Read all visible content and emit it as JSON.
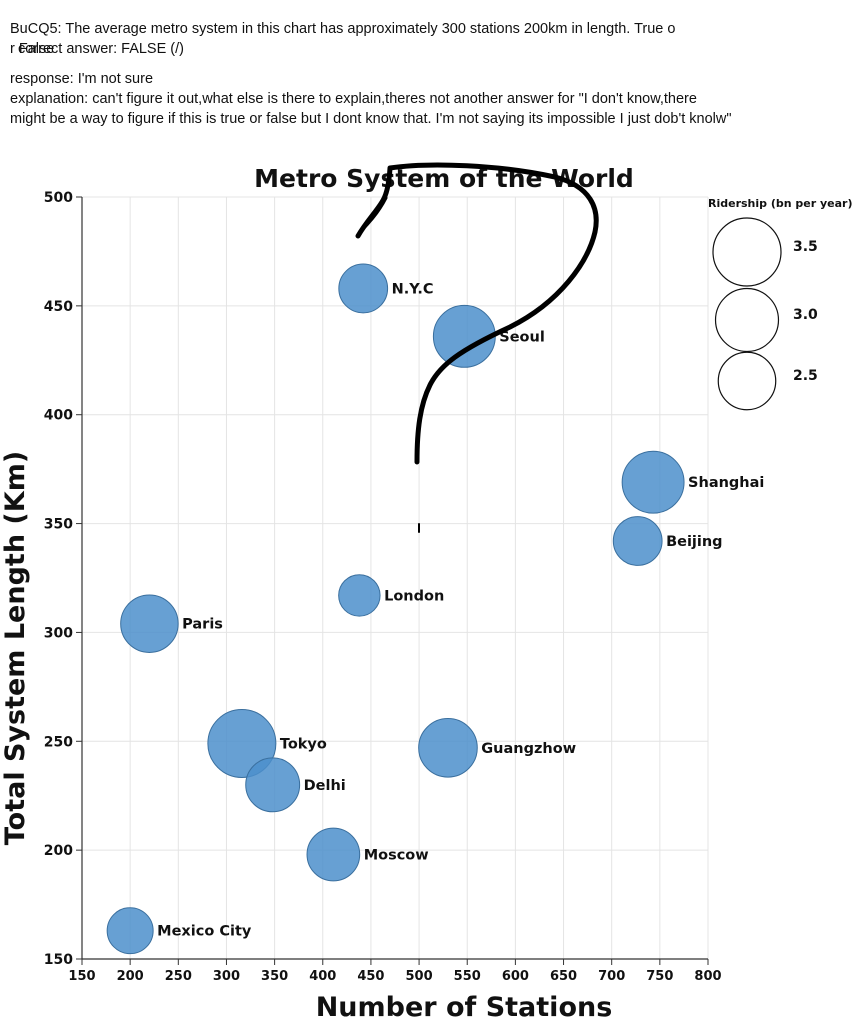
{
  "annotation": {
    "question": "BuCQ5: The average metro system in this chart has approximately 300 stations 200km in length. True o",
    "question_wrap": "r False",
    "correct_answer": "correct answer: FALSE (/)",
    "response": "response: I'm not sure",
    "explanation_line1": "explanation: can't figure it out,what else is there to explain,theres not another answer for \"I don't know,there",
    "explanation_line2": "might be a way to figure if this is true or false but I dont know that. I'm not saying its impossible I just dob't knolw\""
  },
  "colors": {
    "bubble_fill": "#4c8fcb",
    "bubble_stroke": "#3a6f9e",
    "grid": "#e4e4e4",
    "axis": "#333333",
    "scribble": "#000000"
  },
  "chart_data": {
    "type": "scatter",
    "title": "Metro System of the World",
    "xlabel": "Number of Stations",
    "ylabel": "Total System Length (Km)",
    "xlim": [
      150,
      800
    ],
    "ylim": [
      150,
      500
    ],
    "xticks": [
      150,
      200,
      250,
      300,
      350,
      400,
      450,
      500,
      550,
      600,
      650,
      700,
      750,
      800
    ],
    "yticks": [
      150,
      200,
      250,
      300,
      350,
      400,
      450,
      500
    ],
    "grid": true,
    "size_legend": {
      "title": "Ridership (bn per year)",
      "placement": "right",
      "entries": [
        {
          "label": "3.5",
          "value": 3.5
        },
        {
          "label": "3.0",
          "value": 3.0
        },
        {
          "label": "2.5",
          "value": 2.5
        }
      ]
    },
    "points": [
      {
        "name": "N.Y.C",
        "stations": 442,
        "length": 458,
        "ridership": 1.8
      },
      {
        "name": "Seoul",
        "stations": 547,
        "length": 436,
        "ridership": 2.9
      },
      {
        "name": "Shanghai",
        "stations": 743,
        "length": 369,
        "ridership": 2.9
      },
      {
        "name": "Beijing",
        "stations": 727,
        "length": 342,
        "ridership": 1.8
      },
      {
        "name": "London",
        "stations": 438,
        "length": 317,
        "ridership": 1.3
      },
      {
        "name": "Paris",
        "stations": 220,
        "length": 304,
        "ridership": 2.5
      },
      {
        "name": "Tokyo",
        "stations": 316,
        "length": 249,
        "ridership": 3.5
      },
      {
        "name": "Delhi",
        "stations": 348,
        "length": 230,
        "ridership": 2.2
      },
      {
        "name": "Guangzhow",
        "stations": 530,
        "length": 247,
        "ridership": 2.6
      },
      {
        "name": "Moscow",
        "stations": 411,
        "length": 198,
        "ridership": 2.1
      },
      {
        "name": "Mexico City",
        "stations": 200,
        "length": 163,
        "ridership": 1.6
      }
    ]
  }
}
